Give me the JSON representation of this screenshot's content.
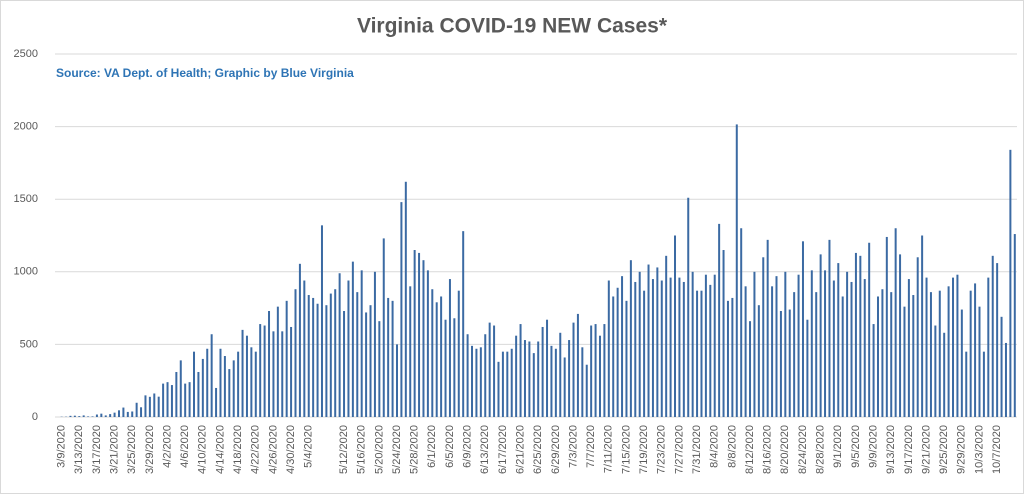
{
  "chart_data": {
    "type": "bar",
    "title": "Virginia COVID-19 NEW Cases*",
    "subtitle": "Source: VA Dept. of Health; Graphic by Blue Virginia",
    "color": "#3b6aa3",
    "ylim": [
      0,
      2500
    ],
    "yticks": [
      0,
      500,
      1000,
      1500,
      2000,
      2500
    ],
    "grid": true,
    "categories": [
      null,
      "3/9/2020",
      null,
      null,
      null,
      "3/13/2020",
      null,
      null,
      null,
      "3/17/2020",
      null,
      null,
      null,
      "3/21/2020",
      null,
      null,
      null,
      "3/25/2020",
      null,
      null,
      null,
      "3/29/2020",
      null,
      null,
      null,
      "4/2/2020",
      null,
      null,
      null,
      "4/6/2020",
      null,
      null,
      null,
      "4/10/2020",
      null,
      null,
      null,
      "4/14/2020",
      null,
      null,
      null,
      "4/18/2020",
      null,
      null,
      null,
      "4/22/2020",
      null,
      null,
      null,
      "4/26/2020",
      null,
      null,
      null,
      "4/30/2020",
      null,
      null,
      null,
      "5/4/2020",
      null,
      null,
      null,
      null,
      null,
      null,
      null,
      "5/12/2020",
      null,
      null,
      null,
      "5/16/2020",
      null,
      null,
      null,
      "5/20/2020",
      null,
      null,
      null,
      "5/24/2020",
      null,
      null,
      null,
      "5/28/2020",
      null,
      null,
      null,
      "6/1/2020",
      null,
      null,
      null,
      "6/5/2020",
      null,
      null,
      null,
      "6/9/2020",
      null,
      null,
      null,
      "6/13/2020",
      null,
      null,
      null,
      "6/17/2020",
      null,
      null,
      null,
      "6/21/2020",
      null,
      null,
      null,
      "6/25/2020",
      null,
      null,
      null,
      "6/29/2020",
      null,
      null,
      null,
      "7/3/2020",
      null,
      null,
      null,
      "7/7/2020",
      null,
      null,
      null,
      "7/11/2020",
      null,
      null,
      null,
      "7/15/2020",
      null,
      null,
      null,
      "7/19/2020",
      null,
      null,
      null,
      "7/23/2020",
      null,
      null,
      null,
      "7/27/2020",
      null,
      null,
      null,
      "7/31/2020",
      null,
      null,
      null,
      "8/4/2020",
      null,
      null,
      null,
      "8/8/2020",
      null,
      null,
      null,
      "8/12/2020",
      null,
      null,
      null,
      "8/16/2020",
      null,
      null,
      null,
      "8/20/2020",
      null,
      null,
      null,
      "8/24/2020",
      null,
      null,
      null,
      "8/28/2020",
      null,
      null,
      null,
      "9/1/2020",
      null,
      null,
      null,
      "9/5/2020",
      null,
      null,
      null,
      "9/9/2020",
      null,
      null,
      null,
      "9/13/2020",
      null,
      null,
      null,
      "9/17/2020",
      null,
      null,
      null,
      "9/21/2020",
      null,
      null,
      null,
      "9/25/2020",
      null,
      null,
      null,
      "9/29/2020",
      null,
      null,
      null,
      "10/3/2020",
      null,
      null,
      null,
      "10/7/2020",
      null,
      null,
      null,
      null
    ],
    "values": [
      0,
      2,
      2,
      8,
      9,
      6,
      11,
      4,
      4,
      17,
      23,
      11,
      20,
      30,
      46,
      65,
      35,
      38,
      98,
      67,
      149,
      139,
      162,
      140,
      230,
      240,
      220,
      310,
      390,
      230,
      240,
      450,
      310,
      400,
      470,
      570,
      200,
      470,
      420,
      330,
      390,
      450,
      600,
      560,
      480,
      450,
      640,
      630,
      730,
      590,
      760,
      590,
      800,
      620,
      880,
      1055,
      940,
      840,
      820,
      780,
      1320,
      770,
      850,
      880,
      990,
      730,
      940,
      1070,
      860,
      1010,
      720,
      770,
      1000,
      660,
      1230,
      820,
      800,
      500,
      1480,
      1620,
      900,
      1150,
      1130,
      1080,
      1010,
      880,
      790,
      830,
      670,
      950,
      680,
      870,
      1280,
      570,
      490,
      470,
      480,
      570,
      650,
      630,
      380,
      450,
      450,
      470,
      560,
      640,
      530,
      520,
      440,
      520,
      620,
      670,
      490,
      470,
      580,
      410,
      530,
      650,
      710,
      480,
      360,
      630,
      640,
      560,
      640,
      940,
      830,
      890,
      970,
      800,
      1080,
      930,
      1000,
      870,
      1050,
      950,
      1030,
      940,
      1110,
      960,
      1250,
      960,
      930,
      1510,
      1000,
      870,
      870,
      980,
      910,
      980,
      1330,
      1150,
      800,
      820,
      2015,
      1300,
      900,
      660,
      1000,
      770,
      1100,
      1220,
      900,
      970,
      730,
      1000,
      740,
      860,
      980,
      1210,
      670,
      1010,
      860,
      1120,
      1010,
      1220,
      940,
      1060,
      830,
      1000,
      930,
      1130,
      1110,
      950,
      1200,
      640,
      830,
      880,
      1240,
      860,
      1300,
      1120,
      760,
      950,
      840,
      1100,
      1250,
      960,
      860,
      630,
      870,
      580,
      900,
      960,
      980,
      740,
      450,
      870,
      920,
      760,
      450,
      960,
      1110,
      1060,
      690,
      510,
      1840,
      1260
    ]
  }
}
